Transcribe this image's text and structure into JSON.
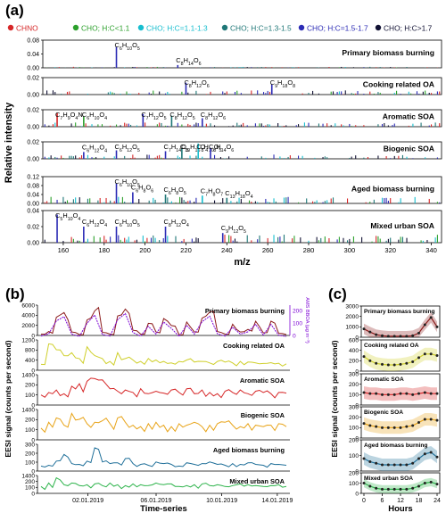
{
  "figure": {
    "panel_a_label": "(a)",
    "panel_b_label": "(b)",
    "panel_c_label": "(c)"
  },
  "colors": {
    "CHNO": "#d62728",
    "CHO_lt_1_1": "#2ca02c",
    "CHO_1_1_1_3": "#17becf",
    "CHO_1_3_1_5": "#1f7777",
    "CHO_1_5_1_7": "#2b2bb5",
    "CHO_gt_1_7": "#111133",
    "pbb_series": "#8b1a1a",
    "pbb_ams": "#7b00d4",
    "cooking": "#cfcf2a",
    "aromatic": "#d62728",
    "biogenic": "#e8a317",
    "aged_bb": "#1f6f99",
    "mixed_urban": "#2cb34a"
  },
  "chart_data": [
    {
      "type": "bar",
      "panel": "a",
      "legend": [
        {
          "label": "CHNO",
          "color": "#d62728"
        },
        {
          "label": "CHO; H:C<1.1",
          "color": "#2ca02c"
        },
        {
          "label": "CHO; H:C=1.1-1.3",
          "color": "#17becf"
        },
        {
          "label": "CHO; H:C=1.3-1.5",
          "color": "#1f7777"
        },
        {
          "label": "CHO; H:C=1.5-1.7",
          "color": "#2b2bb5"
        },
        {
          "label": "CHO; H:C>1.7",
          "color": "#111133"
        }
      ],
      "legend_placement": "top",
      "xlabel": "m/z",
      "ylabel": "Relative intensity",
      "xlim": [
        150,
        345
      ],
      "xticks": [
        160,
        180,
        200,
        220,
        240,
        260,
        280,
        300,
        320,
        340
      ],
      "subplots": [
        {
          "name": "Primary biomass burning",
          "ylim": [
            0,
            0.08
          ],
          "yticks": [
            "0.08",
            "0.04",
            "0.00"
          ],
          "peaks": [
            {
              "mz": 186,
              "value": 0.06,
              "label": "C6H10O5",
              "color": "#2b2bb5"
            },
            {
              "mz": 216,
              "value": 0.008,
              "label": "C8H14O6",
              "color": "#2b2bb5"
            }
          ]
        },
        {
          "name": "Cooking related OA",
          "ylim": [
            0,
            0.02
          ],
          "yticks": [
            "0.02",
            "0.00"
          ],
          "peaks": [
            {
              "mz": 220,
              "value": 0.014,
              "label": "C8H12O6",
              "color": "#2b2bb5"
            },
            {
              "mz": 262,
              "value": 0.012,
              "label": "C9H18O8",
              "color": "#2b2bb5"
            }
          ]
        },
        {
          "name": "Aromatic SOA",
          "ylim": [
            0,
            0.02
          ],
          "yticks": [
            "0.02",
            "0.00"
          ],
          "peaks": [
            {
              "mz": 157,
              "value": 0.016,
              "label": "C7H9O4N",
              "color": "#d62728"
            },
            {
              "mz": 170,
              "value": 0.012,
              "label": "C6H10O4",
              "color": "#2ca02c"
            },
            {
              "mz": 199,
              "value": 0.015,
              "label": "C7H12O5",
              "color": "#2b2bb5"
            },
            {
              "mz": 213,
              "value": 0.013,
              "label": "C8H12O5",
              "color": "#1f7777"
            },
            {
              "mz": 228,
              "value": 0.01,
              "label": "C8H12O6",
              "color": "#2b2bb5"
            }
          ]
        },
        {
          "name": "Biogenic SOA",
          "ylim": [
            0,
            0.02
          ],
          "yticks": [
            "0.02",
            "0.00"
          ],
          "peaks": [
            {
              "mz": 170,
              "value": 0.008,
              "label": "C6H12O4",
              "color": "#2b2bb5"
            },
            {
              "mz": 186,
              "value": 0.01,
              "label": "C6H12O5",
              "color": "#2b2bb5"
            },
            {
              "mz": 210,
              "value": 0.009,
              "label": "C7H14O5",
              "color": "#2b2bb5"
            },
            {
              "mz": 218,
              "value": 0.012,
              "label": "C10H16O4",
              "color": "#1f7777"
            },
            {
              "mz": 226,
              "value": 0.018,
              "label": "C8H10O5",
              "color": "#17becf"
            },
            {
              "mz": 232,
              "value": 0.013,
              "label": "C8H14O6",
              "color": "#2b2bb5"
            }
          ]
        },
        {
          "name": "Aged biomass burning",
          "ylim": [
            0,
            0.12
          ],
          "yticks": [
            "0.12",
            "0.08",
            "0.04",
            "0.00"
          ],
          "peaks": [
            {
              "mz": 186,
              "value": 0.09,
              "label": "C6H10O5",
              "color": "#2b2bb5"
            },
            {
              "mz": 194,
              "value": 0.05,
              "label": "C6H8O6",
              "color": "#2b2bb5"
            },
            {
              "mz": 210,
              "value": 0.04,
              "label": "C6H8O5",
              "color": "#1f7777"
            },
            {
              "mz": 228,
              "value": 0.035,
              "label": "C7H8O7",
              "color": "#17becf"
            },
            {
              "mz": 240,
              "value": 0.025,
              "label": "C13H18O4",
              "color": "#1f7777"
            }
          ]
        },
        {
          "name": "Mixed urban SOA",
          "ylim": [
            0,
            0.04
          ],
          "yticks": [
            "0.04",
            "0.02",
            "0.00"
          ],
          "peaks": [
            {
              "mz": 157,
              "value": 0.035,
              "label": "C5H10O4",
              "color": "#2b2bb5"
            },
            {
              "mz": 170,
              "value": 0.02,
              "label": "C6H12O4",
              "color": "#2b2bb5"
            },
            {
              "mz": 186,
              "value": 0.02,
              "label": "C6H10O5",
              "color": "#2b2bb5"
            },
            {
              "mz": 210,
              "value": 0.02,
              "label": "C8H12O4",
              "color": "#2b2bb5"
            },
            {
              "mz": 238,
              "value": 0.012,
              "label": "C9H12O5",
              "color": "#2b2bb5"
            }
          ]
        }
      ]
    },
    {
      "type": "line",
      "panel": "b",
      "xlabel": "Time-series",
      "ylabel": "EESI signal (counts per second)",
      "xtick_labels": [
        "02.01.2019",
        "06.01.2019",
        "10.01.2019",
        "14.01.2019"
      ],
      "subplots": [
        {
          "name": "Primary biomass burning",
          "color": "#8b1a1a",
          "yticks": [
            "6000",
            "4000",
            "2000",
            "0"
          ],
          "secondary_axis": {
            "label": "AMS BBOA (µg m⁻³)",
            "yticks": [
              "200",
              "100",
              "0"
            ],
            "color": "#7b00d4"
          },
          "values": [
            300,
            900,
            4200,
            5300,
            800,
            200,
            3600,
            5700,
            700,
            300,
            4500,
            6100,
            1200,
            300,
            2800,
            800,
            3900,
            2300,
            200,
            3100,
            800,
            4000,
            5400,
            900,
            300,
            2600,
            800,
            1400,
            3300,
            600,
            3300,
            500,
            200
          ]
        },
        {
          "name": "Cooking related OA",
          "color": "#cfcf2a",
          "yticks": [
            "1200",
            "800",
            "400",
            "0"
          ],
          "values": [
            200,
            900,
            700,
            500,
            600,
            400,
            800,
            500,
            400,
            300,
            600,
            400,
            350,
            300,
            400,
            350,
            300,
            250,
            300,
            350,
            280,
            300,
            250,
            300,
            280,
            250,
            300,
            280,
            250,
            230,
            260,
            240,
            220
          ]
        },
        {
          "name": "Aromatic SOA",
          "color": "#d62728",
          "yticks": [
            "1400",
            "200",
            "100",
            "0"
          ],
          "values": [
            80,
            100,
            120,
            90,
            150,
            170,
            190,
            210,
            200,
            130,
            110,
            120,
            100,
            130,
            90,
            110,
            95,
            120,
            100,
            130,
            90,
            120,
            100,
            90,
            110,
            100,
            120,
            90,
            110,
            100,
            90,
            100,
            95
          ]
        },
        {
          "name": "Biogenic SOA",
          "color": "#e8a317",
          "yticks": [
            "1400",
            "200",
            "100",
            "0"
          ],
          "values": [
            80,
            120,
            150,
            100,
            180,
            140,
            110,
            120,
            130,
            110,
            150,
            120,
            100,
            90,
            110,
            120,
            100,
            90,
            110,
            100,
            120,
            90,
            100,
            110,
            120,
            100,
            90,
            110,
            100,
            90,
            100,
            110,
            90
          ]
        },
        {
          "name": "Aged biomass burning",
          "color": "#1f6f99",
          "yticks": [
            "300",
            "200",
            "100",
            "0"
          ],
          "values": [
            60,
            70,
            120,
            200,
            90,
            80,
            120,
            280,
            110,
            90,
            100,
            150,
            90,
            80,
            70,
            110,
            90,
            80,
            60,
            100,
            80,
            90,
            110,
            80,
            70,
            90,
            80,
            100,
            80,
            70,
            90,
            80,
            70
          ]
        },
        {
          "name": "Mixed urban SOA",
          "color": "#2cb34a",
          "yticks": [
            "1400",
            "200",
            "100",
            "0"
          ],
          "values": [
            80,
            120,
            180,
            100,
            120,
            90,
            100,
            110,
            90,
            120,
            100,
            90,
            110,
            100,
            90,
            120,
            100,
            110,
            80,
            90,
            100,
            110,
            90,
            100,
            80,
            90,
            110,
            100,
            90,
            80,
            90,
            100,
            80
          ]
        }
      ]
    },
    {
      "type": "line",
      "panel": "c",
      "xlabel": "Hours",
      "ylabel": "EESI signal (counts per second)",
      "x": [
        0,
        2,
        4,
        6,
        8,
        10,
        12,
        14,
        16,
        18,
        20,
        22,
        24
      ],
      "xticks": [
        0,
        6,
        12,
        18,
        24
      ],
      "subplots": [
        {
          "name": "Primary biomass burning",
          "color": "#8b1a1a",
          "yticks": [
            "3000",
            "2000",
            "1000",
            "0"
          ],
          "values": [
            800,
            500,
            250,
            150,
            100,
            100,
            100,
            100,
            150,
            400,
            1200,
            1900,
            1000
          ],
          "spread": 500
        },
        {
          "name": "Cooking related OA",
          "color": "#cfcf2a",
          "yticks": [
            "600",
            "400",
            "200",
            "0"
          ],
          "values": [
            280,
            200,
            150,
            130,
            120,
            120,
            130,
            150,
            180,
            260,
            330,
            330,
            300
          ],
          "spread": 120
        },
        {
          "name": "Aromatic SOA",
          "color": "#d62728",
          "yticks": [
            "300",
            "200",
            "100",
            "0"
          ],
          "values": [
            120,
            110,
            110,
            100,
            100,
            100,
            110,
            110,
            100,
            110,
            120,
            110,
            110
          ],
          "spread": 60
        },
        {
          "name": "Biogenic SOA",
          "color": "#e8a317",
          "yticks": [
            "300",
            "200",
            "100",
            "0"
          ],
          "values": [
            140,
            120,
            110,
            100,
            100,
            100,
            100,
            110,
            120,
            150,
            180,
            180,
            170
          ],
          "spread": 60
        },
        {
          "name": "Aged biomass burning",
          "color": "#1f6f99",
          "yticks": [
            "200",
            "100",
            "0"
          ],
          "values": [
            80,
            60,
            50,
            40,
            40,
            40,
            40,
            40,
            50,
            80,
            110,
            120,
            90
          ],
          "spread": 40
        },
        {
          "name": "Mixed urban SOA",
          "color": "#2cb34a",
          "yticks": [
            "200",
            "100",
            "0"
          ],
          "values": [
            100,
            70,
            50,
            40,
            40,
            40,
            40,
            40,
            50,
            70,
            100,
            110,
            90
          ],
          "spread": 40
        }
      ]
    }
  ]
}
